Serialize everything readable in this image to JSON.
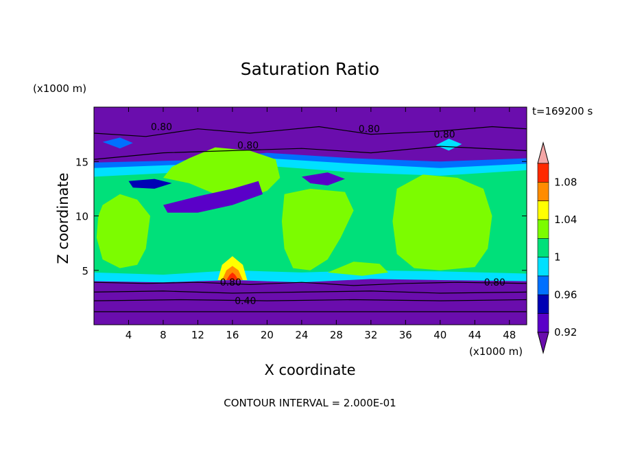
{
  "chart_data": {
    "type": "heatmap",
    "title": "Saturation Ratio",
    "xlabel": "X coordinate",
    "ylabel": "Z coordinate",
    "x_unit": "(x1000 m)",
    "y_unit": "(x1000 m)",
    "xlim": [
      0,
      50
    ],
    "ylim": [
      0,
      20
    ],
    "x_ticks": [
      "4",
      "8",
      "12",
      "16",
      "20",
      "24",
      "28",
      "32",
      "36",
      "40",
      "44",
      "48"
    ],
    "y_ticks": [
      "5",
      "10",
      "15"
    ],
    "timestamp": "t=169200 s",
    "contour_interval": "CONTOUR INTERVAL = 2.000E-01",
    "contour_labels": [
      "0.80",
      "0.80",
      "0.80",
      "0.80",
      "0.80",
      "0.80",
      "0.40"
    ],
    "colorbar": {
      "labels": [
        "1.08",
        "1.04",
        "1",
        "0.96",
        "0.92"
      ],
      "colors": [
        "#f4a6a6",
        "#ff2a00",
        "#ff8c00",
        "#ffff00",
        "#7cfc00",
        "#00e07a",
        "#00e0ff",
        "#0070ff",
        "#0000b4",
        "#5a00c8",
        "#6a0dad"
      ]
    },
    "regions": {
      "background": "#6a0dad",
      "moist_band_z": [
        4,
        14
      ],
      "dry_layers_z": [
        [
          0,
          4
        ],
        [
          14,
          20
        ]
      ]
    }
  },
  "colors": {
    "purple": "#6a0dad",
    "green": "#7cfc00",
    "teal": "#00e07a",
    "cyan": "#00e0ff",
    "blue": "#0070ff",
    "dark-blue": "#0000b4",
    "indigo": "#5a00c8",
    "yellow": "#ffff00",
    "orange": "#ff8c00",
    "red": "#ff2a00",
    "pink": "#f4a6a6"
  }
}
